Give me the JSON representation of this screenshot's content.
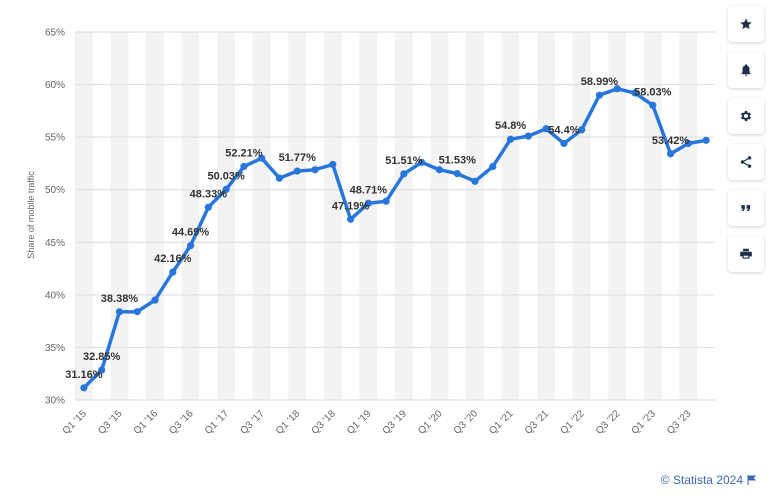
{
  "chart_data": {
    "type": "line",
    "ylabel": "Share of mobile traffic",
    "ylim": [
      30,
      65
    ],
    "yticks": [
      "30%",
      "35%",
      "40%",
      "45%",
      "50%",
      "55%",
      "60%",
      "65%"
    ],
    "ytick_values": [
      30,
      35,
      40,
      45,
      50,
      55,
      60,
      65
    ],
    "x_labels": [
      "Q1 '15",
      "Q3 '15",
      "Q1 '16",
      "Q3 '16",
      "Q1 '17",
      "Q3 '17",
      "Q1 '18",
      "Q3 '18",
      "Q1 '19",
      "Q3 '19",
      "Q1 '20",
      "Q3 '20",
      "Q1 '21",
      "Q3 '21",
      "Q1 '22",
      "Q3 '22",
      "Q1 '23",
      "Q3 '23"
    ],
    "x_label_every": 2,
    "values": [
      31.16,
      32.85,
      38.38,
      38.4,
      39.5,
      42.16,
      44.69,
      48.33,
      50.03,
      52.21,
      53.0,
      51.1,
      51.77,
      51.9,
      52.4,
      47.19,
      48.71,
      48.9,
      51.51,
      52.6,
      51.9,
      51.53,
      50.8,
      52.2,
      54.8,
      55.1,
      55.8,
      54.4,
      55.7,
      58.99,
      59.6,
      59.2,
      58.03,
      53.42,
      54.4,
      54.7
    ],
    "data_labels": {
      "0": "31.16%",
      "1": "32.85%",
      "2": "38.38%",
      "5": "42.16%",
      "6": "44.69%",
      "7": "48.33%",
      "8": "50.03%",
      "9": "52.21%",
      "12": "51.77%",
      "15": "47.19%",
      "16": "48.71%",
      "18": "51.51%",
      "21": "51.53%",
      "24": "54.8%",
      "27": "54.4%",
      "29": "58.99%",
      "32": "58.03%",
      "33": "53.42%"
    },
    "color": "#2876dd",
    "grid": true
  },
  "toolbar": {
    "buttons": [
      {
        "name": "favorite-button",
        "icon": "star-icon"
      },
      {
        "name": "notification-button",
        "icon": "bell-icon"
      },
      {
        "name": "settings-button",
        "icon": "gear-icon"
      },
      {
        "name": "share-button",
        "icon": "share-icon"
      },
      {
        "name": "cite-button",
        "icon": "quote-icon"
      },
      {
        "name": "print-button",
        "icon": "print-icon"
      }
    ]
  },
  "credit": {
    "text": "© Statista 2024"
  }
}
